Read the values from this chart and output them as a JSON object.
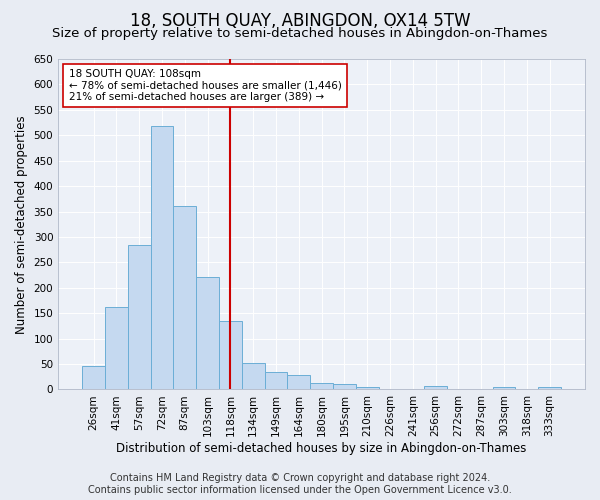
{
  "title": "18, SOUTH QUAY, ABINGDON, OX14 5TW",
  "subtitle": "Size of property relative to semi-detached houses in Abingdon-on-Thames",
  "xlabel": "Distribution of semi-detached houses by size in Abingdon-on-Thames",
  "ylabel": "Number of semi-detached properties",
  "footer_line1": "Contains HM Land Registry data © Crown copyright and database right 2024.",
  "footer_line2": "Contains public sector information licensed under the Open Government Licence v3.0.",
  "categories": [
    "26sqm",
    "41sqm",
    "57sqm",
    "72sqm",
    "87sqm",
    "103sqm",
    "118sqm",
    "134sqm",
    "149sqm",
    "164sqm",
    "180sqm",
    "195sqm",
    "210sqm",
    "226sqm",
    "241sqm",
    "256sqm",
    "272sqm",
    "287sqm",
    "303sqm",
    "318sqm",
    "333sqm"
  ],
  "bar_values": [
    46,
    163,
    285,
    518,
    361,
    222,
    135,
    52,
    35,
    29,
    12,
    11,
    5,
    0,
    0,
    6,
    0,
    0,
    5,
    0,
    5
  ],
  "bar_color": "#c5d9f0",
  "bar_edge_color": "#6baed6",
  "vline_index": 6.0,
  "vline_color": "#cc0000",
  "annotation_text": "18 SOUTH QUAY: 108sqm\n← 78% of semi-detached houses are smaller (1,446)\n21% of semi-detached houses are larger (389) →",
  "annotation_box_color": "#ffffff",
  "annotation_box_edge": "#cc0000",
  "ylim": [
    0,
    650
  ],
  "yticks": [
    0,
    50,
    100,
    150,
    200,
    250,
    300,
    350,
    400,
    450,
    500,
    550,
    600,
    650
  ],
  "bg_color": "#e8ecf3",
  "plot_bg_color": "#edf1f8",
  "grid_color": "#ffffff",
  "title_fontsize": 12,
  "subtitle_fontsize": 9.5,
  "xlabel_fontsize": 8.5,
  "ylabel_fontsize": 8.5,
  "tick_fontsize": 7.5,
  "footer_fontsize": 7
}
